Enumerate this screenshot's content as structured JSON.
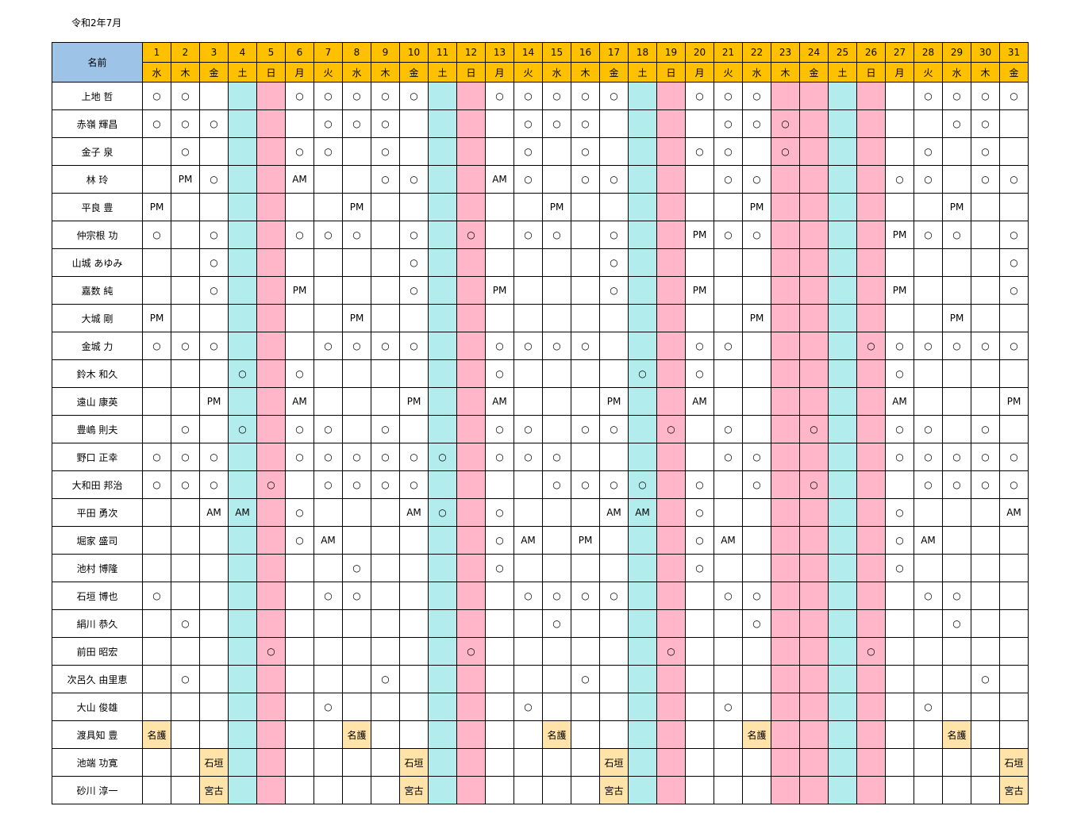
{
  "title": "令和2年7月",
  "header": {
    "name_label": "名前",
    "days": [
      {
        "d": "1",
        "w": "水"
      },
      {
        "d": "2",
        "w": "木"
      },
      {
        "d": "3",
        "w": "金"
      },
      {
        "d": "4",
        "w": "土"
      },
      {
        "d": "5",
        "w": "日"
      },
      {
        "d": "6",
        "w": "月"
      },
      {
        "d": "7",
        "w": "火"
      },
      {
        "d": "8",
        "w": "水"
      },
      {
        "d": "9",
        "w": "木"
      },
      {
        "d": "10",
        "w": "金"
      },
      {
        "d": "11",
        "w": "土"
      },
      {
        "d": "12",
        "w": "日"
      },
      {
        "d": "13",
        "w": "月"
      },
      {
        "d": "14",
        "w": "火"
      },
      {
        "d": "15",
        "w": "水"
      },
      {
        "d": "16",
        "w": "木"
      },
      {
        "d": "17",
        "w": "金"
      },
      {
        "d": "18",
        "w": "土"
      },
      {
        "d": "19",
        "w": "日"
      },
      {
        "d": "20",
        "w": "月"
      },
      {
        "d": "21",
        "w": "火"
      },
      {
        "d": "22",
        "w": "水"
      },
      {
        "d": "23",
        "w": "木"
      },
      {
        "d": "24",
        "w": "金"
      },
      {
        "d": "25",
        "w": "土"
      },
      {
        "d": "26",
        "w": "日"
      },
      {
        "d": "27",
        "w": "月"
      },
      {
        "d": "28",
        "w": "火"
      },
      {
        "d": "29",
        "w": "水"
      },
      {
        "d": "30",
        "w": "木"
      },
      {
        "d": "31",
        "w": "金"
      }
    ]
  },
  "column_shading": {
    "saturday_days": [
      4,
      11,
      18,
      25
    ],
    "sunday_days": [
      5,
      12,
      19,
      26
    ],
    "holiday_days": [
      23,
      24
    ],
    "saturday_color": "#b3ecec",
    "sunday_color": "#ffb6c8",
    "header_color": "#ffc000",
    "name_header_color": "#9dc3e6",
    "location_cell_color": "#ffe3a8"
  },
  "rows": [
    {
      "name": "上地 哲",
      "cells": [
        "○",
        "○",
        "",
        "",
        "",
        "○",
        "○",
        "○",
        "○",
        "○",
        "",
        "",
        "○",
        "○",
        "○",
        "○",
        "○",
        "",
        "",
        "○",
        "○",
        "○",
        "",
        "",
        "",
        "",
        "",
        "○",
        "○",
        "○",
        "○"
      ]
    },
    {
      "name": "赤嶺 輝昌",
      "cells": [
        "○",
        "○",
        "○",
        "",
        "",
        "",
        "○",
        "○",
        "○",
        "",
        "",
        "",
        "",
        "○",
        "○",
        "○",
        "",
        "",
        "",
        "",
        "○",
        "○",
        "○",
        "",
        "",
        "",
        "",
        "",
        "○",
        "○",
        ""
      ]
    },
    {
      "name": "金子 泉",
      "cells": [
        "",
        "○",
        "",
        "",
        "",
        "○",
        "○",
        "",
        "○",
        "",
        "",
        "",
        "",
        "○",
        "",
        "○",
        "",
        "",
        "",
        "○",
        "○",
        "",
        "○",
        "",
        "",
        "",
        "",
        "○",
        "",
        "○",
        ""
      ]
    },
    {
      "name": "林 玲",
      "cells": [
        "",
        "PM",
        "○",
        "",
        "",
        "AM",
        "",
        "",
        "○",
        "○",
        "",
        "",
        "AM",
        "○",
        "",
        "○",
        "○",
        "",
        "",
        "",
        "○",
        "○",
        "",
        "",
        "",
        "",
        "○",
        "○",
        "",
        "○",
        "○"
      ]
    },
    {
      "name": "平良 豊",
      "cells": [
        "PM",
        "",
        "",
        "",
        "",
        "",
        "",
        "PM",
        "",
        "",
        "",
        "",
        "",
        "",
        "PM",
        "",
        "",
        "",
        "",
        "",
        "",
        "PM",
        "",
        "",
        "",
        "",
        "",
        "",
        "PM",
        "",
        ""
      ]
    },
    {
      "name": "仲宗根 功",
      "cells": [
        "○",
        "",
        "○",
        "",
        "",
        "○",
        "○",
        "○",
        "",
        "○",
        "",
        "○",
        "",
        "○",
        "○",
        "",
        "○",
        "",
        "",
        "PM",
        "○",
        "○",
        "",
        "",
        "",
        "",
        "PM",
        "○",
        "○",
        "",
        "○"
      ]
    },
    {
      "name": "山城 あゆみ",
      "cells": [
        "",
        "",
        "○",
        "",
        "",
        "",
        "",
        "",
        "",
        "○",
        "",
        "",
        "",
        "",
        "",
        "",
        "○",
        "",
        "",
        "",
        "",
        "",
        "",
        "",
        "",
        "",
        "",
        "",
        "",
        "",
        "○"
      ]
    },
    {
      "name": "嘉数 純",
      "cells": [
        "",
        "",
        "○",
        "",
        "",
        "PM",
        "",
        "",
        "",
        "○",
        "",
        "",
        "PM",
        "",
        "",
        "",
        "○",
        "",
        "",
        "PM",
        "",
        "",
        "",
        "",
        "",
        "",
        "PM",
        "",
        "",
        "",
        "○"
      ]
    },
    {
      "name": "大城 剛",
      "cells": [
        "PM",
        "",
        "",
        "",
        "",
        "",
        "",
        "PM",
        "",
        "",
        "",
        "",
        "",
        "",
        "",
        "",
        "",
        "",
        "",
        "",
        "",
        "PM",
        "",
        "",
        "",
        "",
        "",
        "",
        "PM",
        "",
        ""
      ]
    },
    {
      "name": "金城 力",
      "cells": [
        "○",
        "○",
        "○",
        "",
        "",
        "",
        "○",
        "○",
        "○",
        "○",
        "",
        "",
        "○",
        "○",
        "○",
        "○",
        "",
        "",
        "",
        "○",
        "○",
        "",
        "",
        "",
        "",
        "○",
        "○",
        "○",
        "○",
        "○",
        "○"
      ]
    },
    {
      "name": "鈴木 和久",
      "cells": [
        "",
        "",
        "",
        "○",
        "",
        "○",
        "",
        "",
        "",
        "",
        "",
        "",
        "○",
        "",
        "",
        "",
        "",
        "○",
        "",
        "○",
        "",
        "",
        "",
        "",
        "",
        "",
        "○",
        "",
        "",
        "",
        ""
      ]
    },
    {
      "name": "遠山 康英",
      "cells": [
        "",
        "",
        "PM",
        "",
        "",
        "AM",
        "",
        "",
        "",
        "PM",
        "",
        "",
        "AM",
        "",
        "",
        "",
        "PM",
        "",
        "",
        "AM",
        "",
        "",
        "",
        "",
        "",
        "",
        "AM",
        "",
        "",
        "",
        "PM"
      ]
    },
    {
      "name": "豊嶋 則夫",
      "cells": [
        "",
        "○",
        "",
        "○",
        "",
        "○",
        "○",
        "",
        "○",
        "",
        "",
        "",
        "○",
        "○",
        "",
        "○",
        "○",
        "",
        "○",
        "",
        "○",
        "",
        "",
        "○",
        "",
        "",
        "○",
        "○",
        "",
        "○",
        ""
      ]
    },
    {
      "name": "野口 正幸",
      "cells": [
        "○",
        "○",
        "○",
        "",
        "",
        "○",
        "○",
        "○",
        "○",
        "○",
        "○",
        "",
        "○",
        "○",
        "○",
        "",
        "",
        "",
        "",
        "",
        "○",
        "○",
        "",
        "",
        "",
        "",
        "○",
        "○",
        "○",
        "○",
        "○"
      ]
    },
    {
      "name": "大和田 邦治",
      "cells": [
        "○",
        "○",
        "○",
        "",
        "○",
        "",
        "○",
        "○",
        "○",
        "○",
        "",
        "",
        "",
        "",
        "○",
        "○",
        "○",
        "○",
        "",
        "○",
        "",
        "○",
        "",
        "○",
        "",
        "",
        "",
        "○",
        "○",
        "○",
        "○"
      ]
    },
    {
      "name": "平田 勇次",
      "cells": [
        "",
        "",
        "AM",
        "AM",
        "",
        "○",
        "",
        "",
        "",
        "AM",
        "○",
        "",
        "○",
        "",
        "",
        "",
        "AM",
        "AM",
        "",
        "○",
        "",
        "",
        "",
        "",
        "",
        "",
        "○",
        "",
        "",
        "",
        "AM"
      ]
    },
    {
      "name": "堀家 盛司",
      "cells": [
        "",
        "",
        "",
        "",
        "",
        "○",
        "AM",
        "",
        "",
        "",
        "",
        "",
        "○",
        "AM",
        "",
        "PM",
        "",
        "",
        "",
        "○",
        "AM",
        "",
        "",
        "",
        "",
        "",
        "○",
        "AM",
        "",
        "",
        ""
      ]
    },
    {
      "name": "池村 博隆",
      "cells": [
        "",
        "",
        "",
        "",
        "",
        "",
        "",
        "○",
        "",
        "",
        "",
        "",
        "○",
        "",
        "",
        "",
        "",
        "",
        "",
        "○",
        "",
        "",
        "",
        "",
        "",
        "",
        "○",
        "",
        "",
        "",
        ""
      ]
    },
    {
      "name": "石垣 博也",
      "cells": [
        "○",
        "",
        "",
        "",
        "",
        "",
        "○",
        "○",
        "",
        "",
        "",
        "",
        "",
        "○",
        "○",
        "○",
        "○",
        "",
        "",
        "",
        "○",
        "○",
        "",
        "",
        "",
        "",
        "",
        "○",
        "○",
        "",
        ""
      ]
    },
    {
      "name": "絹川 恭久",
      "cells": [
        "",
        "○",
        "",
        "",
        "",
        "",
        "",
        "",
        "",
        "",
        "",
        "",
        "",
        "",
        "○",
        "",
        "",
        "",
        "",
        "",
        "",
        "○",
        "",
        "",
        "",
        "",
        "",
        "",
        "○",
        "",
        ""
      ]
    },
    {
      "name": "前田 昭宏",
      "cells": [
        "",
        "",
        "",
        "",
        "○",
        "",
        "",
        "",
        "",
        "",
        "",
        "○",
        "",
        "",
        "",
        "",
        "",
        "",
        "○",
        "",
        "",
        "",
        "",
        "",
        "",
        "○",
        "",
        "",
        "",
        "",
        ""
      ]
    },
    {
      "name": "次呂久 由里恵",
      "cells": [
        "",
        "○",
        "",
        "",
        "",
        "",
        "",
        "",
        "○",
        "",
        "",
        "",
        "",
        "",
        "",
        "○",
        "",
        "",
        "",
        "",
        "",
        "",
        "",
        "",
        "",
        "",
        "",
        "",
        "",
        "○",
        ""
      ]
    },
    {
      "name": "大山 俊雄",
      "cells": [
        "",
        "",
        "",
        "",
        "",
        "",
        "○",
        "",
        "",
        "",
        "",
        "",
        "",
        "○",
        "",
        "",
        "",
        "",
        "",
        "",
        "○",
        "",
        "",
        "",
        "",
        "",
        "",
        "○",
        "",
        "",
        ""
      ]
    },
    {
      "name": "渡具知 豊",
      "cells": [
        "名護",
        "",
        "",
        "",
        "",
        "",
        "",
        "名護",
        "",
        "",
        "",
        "",
        "",
        "",
        "名護",
        "",
        "",
        "",
        "",
        "",
        "",
        "名護",
        "",
        "",
        "",
        "",
        "",
        "",
        "名護",
        "",
        ""
      ]
    },
    {
      "name": "池端 功寛",
      "cells": [
        "",
        "",
        "石垣",
        "",
        "",
        "",
        "",
        "",
        "",
        "石垣",
        "",
        "",
        "",
        "",
        "",
        "",
        "石垣",
        "",
        "",
        "",
        "",
        "",
        "",
        "",
        "",
        "",
        "",
        "",
        "",
        "",
        "石垣"
      ]
    },
    {
      "name": "砂川 淳一",
      "cells": [
        "",
        "",
        "宮古",
        "",
        "",
        "",
        "",
        "",
        "",
        "宮古",
        "",
        "",
        "",
        "",
        "",
        "",
        "宮古",
        "",
        "",
        "",
        "",
        "",
        "",
        "",
        "",
        "",
        "",
        "",
        "",
        "",
        "宮古"
      ]
    }
  ]
}
